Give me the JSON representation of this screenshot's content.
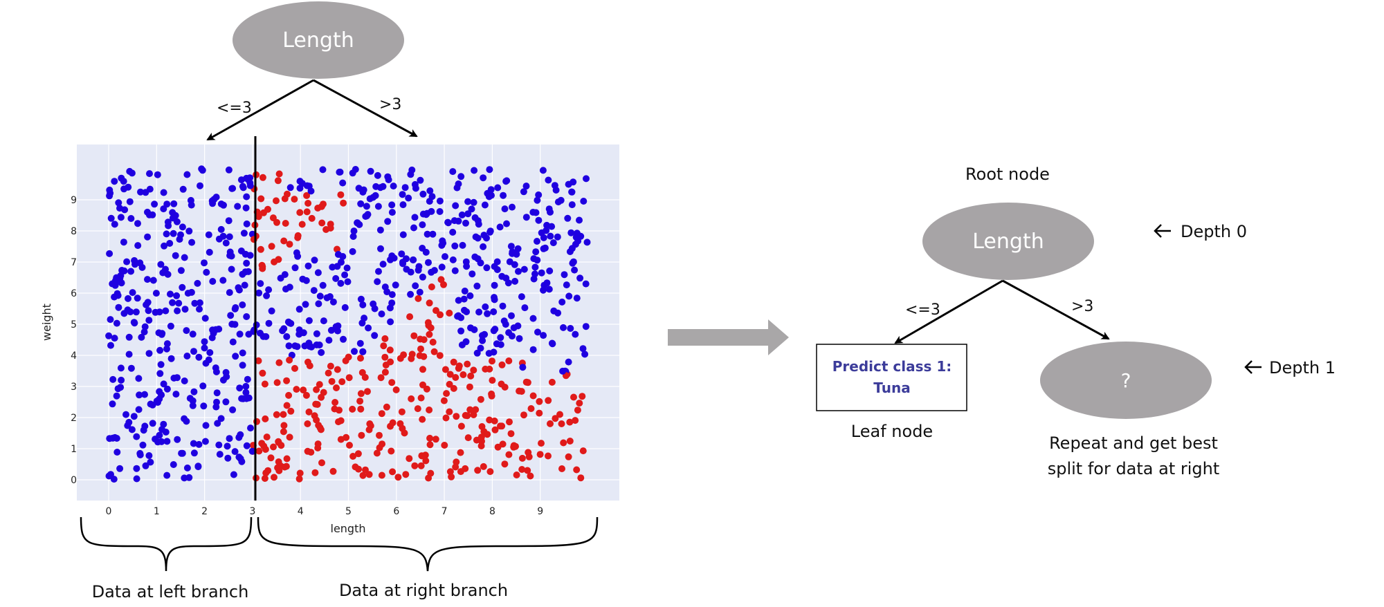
{
  "tree_top": {
    "root_label": "Length",
    "left_edge_label": "<=3",
    "right_edge_label": ">3"
  },
  "brace_labels": {
    "left": "Data at left branch",
    "right": "Data at right branch"
  },
  "chart_data": {
    "type": "scatter",
    "title": "",
    "xlabel": "length",
    "ylabel": "weight",
    "x_ticks": [
      "0",
      "1",
      "2",
      "3",
      "4",
      "5",
      "6",
      "7",
      "8",
      "9"
    ],
    "y_ticks": [
      "0",
      "1",
      "2",
      "3",
      "4",
      "5",
      "6",
      "7",
      "8",
      "9"
    ],
    "xlim": [
      -0.6,
      10.6
    ],
    "ylim": [
      -0.7,
      10.5
    ],
    "grid": true,
    "split_line_x": 3,
    "series_colors": {
      "class1": "#1f00e0",
      "class2": "#e01a1a"
    },
    "series": [
      {
        "color": "#1f00e0",
        "count": 640,
        "note": ""
      },
      {
        "color": "#e01a1a",
        "count": 420,
        "note": ""
      }
    ]
  },
  "tree_right": {
    "root_caption": "Root node",
    "root_label": "Length",
    "depth0_label": "Depth 0",
    "depth1_label": "Depth 1",
    "left_edge_label": "<=3",
    "right_edge_label": ">3",
    "leaf_line1": "Predict class 1:",
    "leaf_line2": "Tuna",
    "leaf_caption": "Leaf node",
    "unknown_label": "?",
    "repeat_line1": "Repeat and get best",
    "repeat_line2": "split for data at right",
    "arrow_icon": "left-arrow-icon"
  },
  "colors": {
    "node_fill": "#a7a4a6",
    "plot_bg": "#e5e9f6",
    "leaf_text": "#3c3c9a",
    "big_arrow": "#a9a7a8"
  }
}
